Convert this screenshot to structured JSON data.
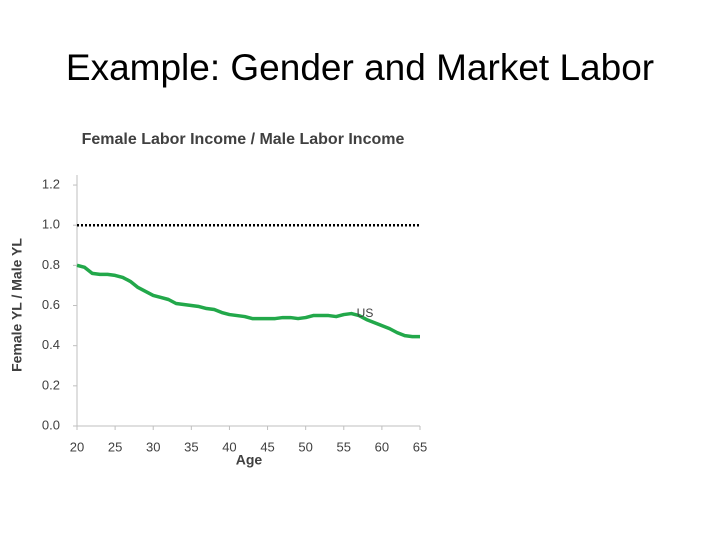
{
  "slide_title": "Example: Gender and Market Labor",
  "chart_data": {
    "type": "line",
    "title": "Female Labor Income / Male Labor Income",
    "x_label": "Age",
    "y_label": "Female YL / Male YL",
    "x": [
      20,
      21,
      22,
      23,
      24,
      25,
      26,
      27,
      28,
      29,
      30,
      31,
      32,
      33,
      34,
      35,
      36,
      37,
      38,
      39,
      40,
      41,
      42,
      43,
      44,
      45,
      46,
      47,
      48,
      49,
      50,
      51,
      52,
      53,
      54,
      55,
      56,
      57,
      58,
      59,
      60,
      61,
      62,
      63,
      64,
      65
    ],
    "series": [
      {
        "name": "US",
        "color": "#22a84a",
        "values": [
          0.8,
          0.79,
          0.76,
          0.755,
          0.755,
          0.75,
          0.74,
          0.72,
          0.69,
          0.67,
          0.65,
          0.64,
          0.63,
          0.61,
          0.605,
          0.6,
          0.595,
          0.585,
          0.58,
          0.565,
          0.555,
          0.55,
          0.545,
          0.535,
          0.535,
          0.535,
          0.535,
          0.54,
          0.54,
          0.535,
          0.54,
          0.55,
          0.55,
          0.55,
          0.545,
          0.555,
          0.56,
          0.55,
          0.53,
          0.515,
          0.5,
          0.485,
          0.465,
          0.45,
          0.445,
          0.445
        ]
      }
    ],
    "annotation": "US",
    "reference_line": {
      "value": 1.0,
      "color": "#000000",
      "style": "dotted"
    },
    "xlim": [
      20,
      65
    ],
    "xticks": [
      20,
      25,
      30,
      35,
      40,
      45,
      50,
      55,
      60,
      65
    ],
    "ylim": [
      0,
      1.25
    ],
    "yticks": [
      {
        "value": 0,
        "label": "0.0"
      },
      0.2,
      0.4,
      0.6,
      0.8,
      {
        "value": 1,
        "label": "1.0"
      },
      1.2
    ],
    "grid": false
  }
}
